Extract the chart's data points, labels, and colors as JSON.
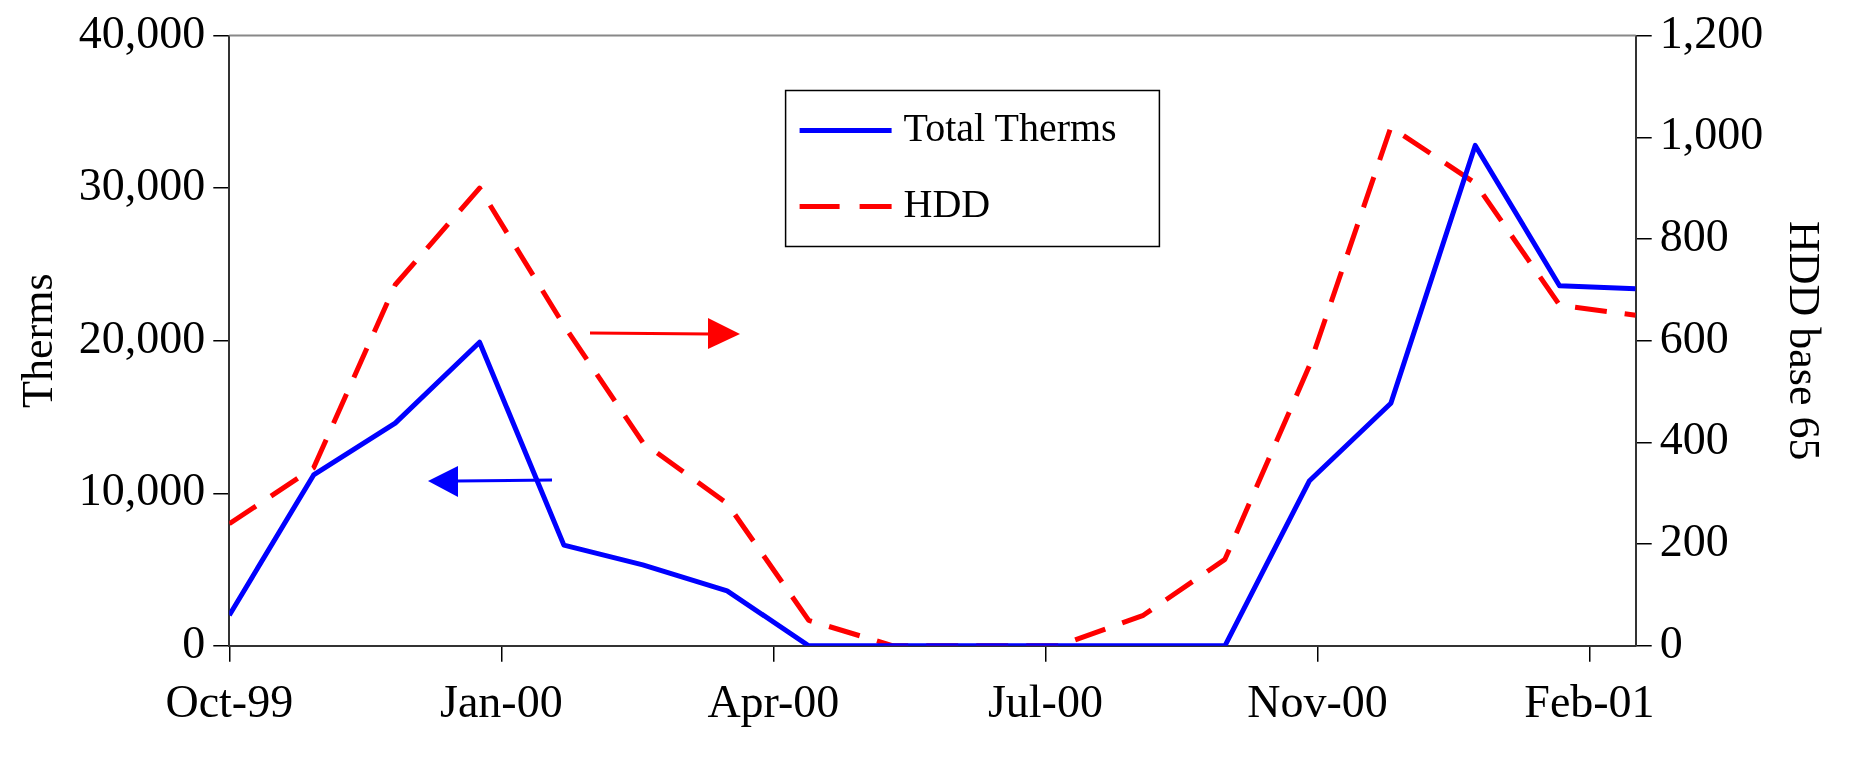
{
  "chart_data": {
    "type": "line",
    "ylabel": "Therms",
    "y2label": "HDD base 65",
    "x": [
      "1999-10-01",
      "1999-11-01",
      "1999-12-01",
      "2000-01-01",
      "2000-02-01",
      "2000-03-01",
      "2000-04-01",
      "2000-05-01",
      "2000-06-01",
      "2000-07-01",
      "2000-08-01",
      "2000-09-01",
      "2000-10-01",
      "2000-11-01",
      "2000-12-01",
      "2001-01-01",
      "2001-02-01",
      "2001-03-01"
    ],
    "series": [
      {
        "name": "Total Therms",
        "color": "#0000ff",
        "line_style": "solid",
        "values": [
          2000,
          11200,
          14600,
          19900,
          6600,
          5300,
          3600,
          0,
          0,
          0,
          0,
          0,
          0,
          10800,
          15900,
          32800,
          23600,
          23400
        ]
      },
      {
        "name": "HDD",
        "color": "#ff0000",
        "line_style": "dashed",
        "axis": "y2",
        "values": [
          240,
          350,
          710,
          900,
          630,
          400,
          280,
          50,
          0,
          0,
          0,
          60,
          170,
          550,
          1020,
          910,
          670,
          650
        ]
      }
    ],
    "xlim": [
      "1999-10-01",
      "2001-03-01"
    ],
    "xticks": [
      {
        "value": "1999-10-01",
        "label": "Oct-99"
      },
      {
        "value": "2000-01-09",
        "label": "Jan-00"
      },
      {
        "value": "2000-04-18",
        "label": "Apr-00"
      },
      {
        "value": "2000-07-27",
        "label": "Jul-00"
      },
      {
        "value": "2000-11-04",
        "label": "Nov-00"
      },
      {
        "value": "2001-02-12",
        "label": "Feb-01"
      }
    ],
    "ylim": [
      0,
      40000
    ],
    "yticks": [
      0,
      {
        "value": 10000,
        "label": "10,000"
      },
      {
        "value": 20000,
        "label": "20,000"
      },
      {
        "value": 30000,
        "label": "30,000"
      },
      {
        "value": 40000,
        "label": "40,000"
      }
    ],
    "y2lim": [
      0,
      1200
    ],
    "y2ticks": [
      0,
      200,
      400,
      600,
      800,
      {
        "value": 1000,
        "label": "1,000"
      },
      {
        "value": 1200,
        "label": "1,200"
      }
    ],
    "grid": false,
    "legend": "top",
    "marker": "none"
  }
}
